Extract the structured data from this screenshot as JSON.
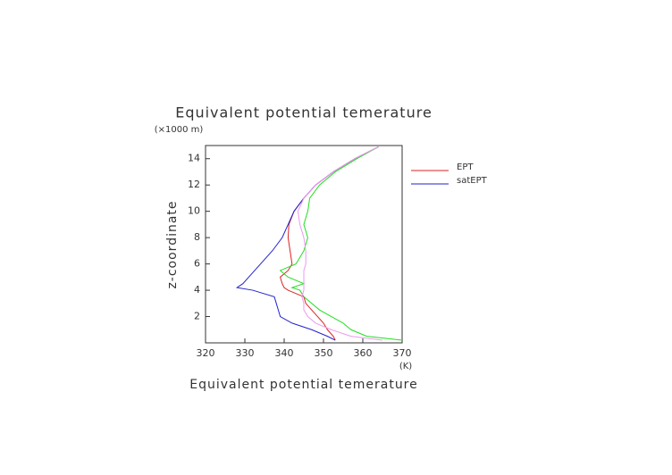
{
  "chart_data": {
    "type": "line",
    "title": "Equivalent potential temerature",
    "x_label": "Equivalent potential temerature",
    "y_label": "z-coordinate",
    "x_unit": "(K)",
    "y_unit": "(×1000 m)",
    "y": [
      0.2,
      0.5,
      1,
      1.5,
      2,
      2.5,
      3,
      3.5,
      4,
      4.2,
      4.5,
      5,
      5.5,
      6,
      7,
      8,
      9,
      10,
      11,
      12,
      13,
      14,
      14.9
    ],
    "series": [
      {
        "name": "EPT",
        "color": "#dd2222",
        "x": [
          353,
          352.5,
          351,
          350,
          348.5,
          347,
          345.5,
          345,
          341,
          340,
          339.5,
          339,
          341,
          342,
          341.5,
          341,
          341.2,
          342.5,
          345,
          348,
          352.5,
          358,
          364
        ]
      },
      {
        "name": "satEPT",
        "color": "#2222cc",
        "x": [
          353,
          351,
          347,
          342,
          339,
          338.5,
          338,
          337.5,
          332,
          328,
          329.5,
          331,
          332.5,
          334,
          337,
          339.5,
          341,
          342.5,
          345,
          348,
          352.5,
          358,
          364
        ]
      },
      {
        "color": "#22dd22",
        "x": [
          370,
          361,
          357,
          355,
          352,
          349,
          347,
          345,
          344,
          342,
          345,
          341,
          339,
          343,
          345,
          346,
          345,
          346,
          346.5,
          349,
          353,
          358.5,
          364
        ]
      },
      {
        "color": "#ee99ee",
        "x": [
          365,
          357,
          352,
          348,
          346,
          345,
          345,
          344.5,
          345,
          345,
          345,
          345,
          345,
          345.5,
          345.5,
          345,
          344,
          343.5,
          345,
          348,
          352.5,
          358,
          364
        ]
      }
    ],
    "xlim": [
      320,
      370
    ],
    "xticks": [
      320,
      330,
      340,
      350,
      360,
      370
    ],
    "ylim": [
      0,
      15
    ],
    "yticks": [
      2,
      4,
      6,
      8,
      10,
      12,
      14
    ]
  }
}
